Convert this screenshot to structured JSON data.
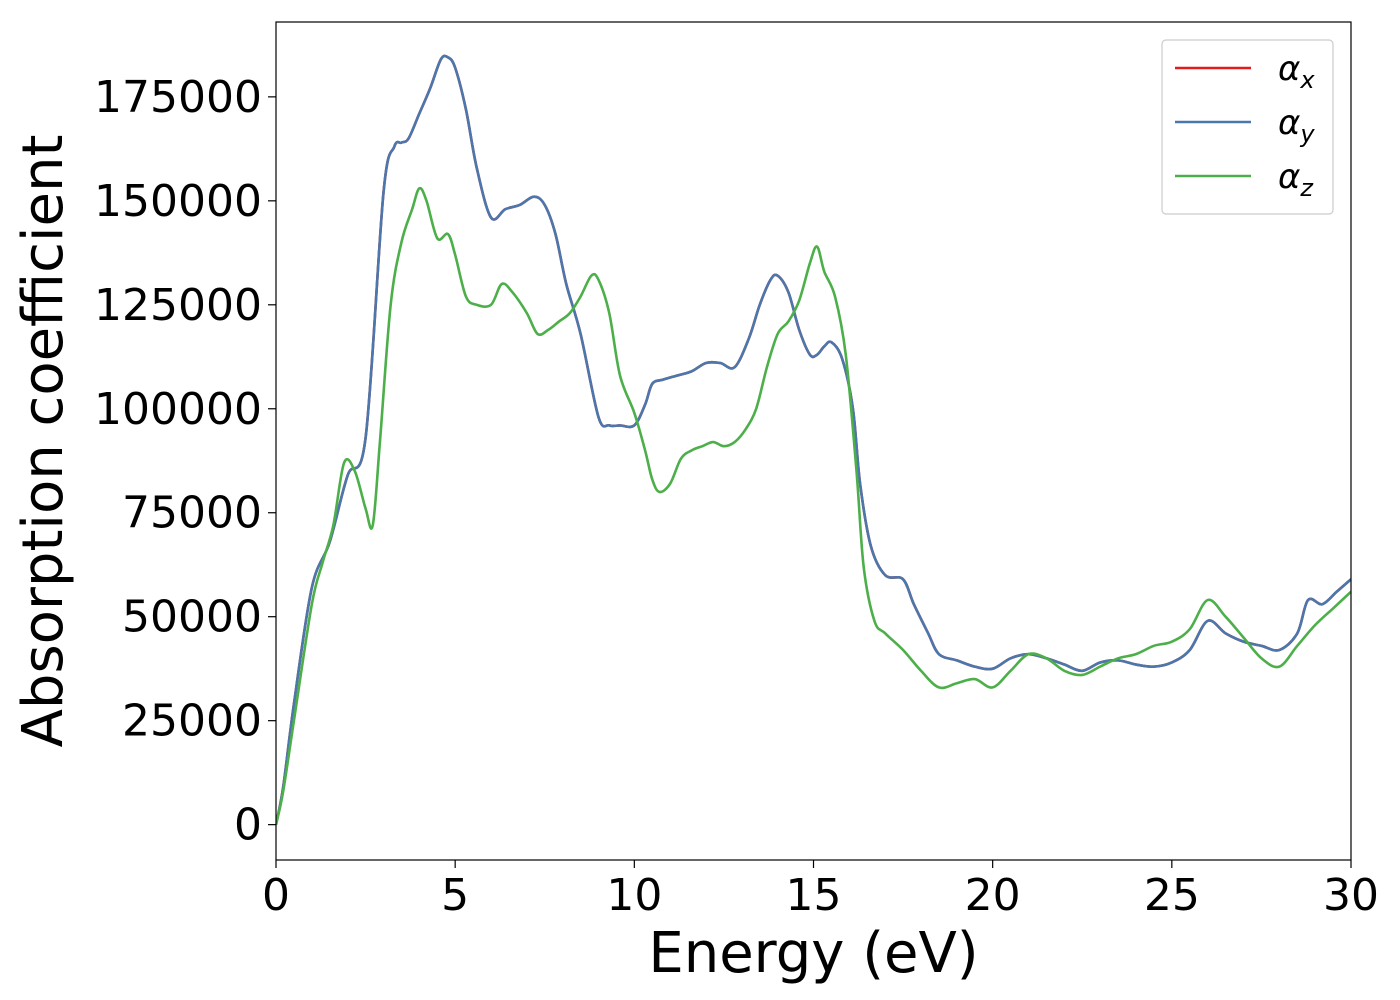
{
  "chart_data": {
    "type": "line",
    "xlabel": "Energy (eV)",
    "ylabel": "Absorption coefficient",
    "xlim": [
      0,
      30
    ],
    "ylim": [
      -8500,
      193000
    ],
    "x_ticks": [
      0,
      5,
      10,
      15,
      20,
      25,
      30
    ],
    "y_ticks": [
      0,
      25000,
      50000,
      75000,
      100000,
      125000,
      150000,
      175000
    ],
    "grid": false,
    "legend_position": "top-right",
    "series": [
      {
        "name": "α_x",
        "label_base": "α",
        "label_sub": "x",
        "color": "#e41a1c",
        "x": [
          0,
          0.2,
          0.5,
          1.0,
          1.5,
          2.0,
          2.5,
          3.0,
          3.3,
          3.5,
          3.7,
          4.0,
          4.3,
          4.6,
          4.8,
          5.0,
          5.3,
          5.6,
          6.0,
          6.4,
          6.8,
          7.2,
          7.5,
          7.8,
          8.1,
          8.5,
          9.0,
          9.3,
          9.6,
          10.0,
          10.3,
          10.5,
          10.8,
          11.2,
          11.6,
          12.0,
          12.4,
          12.8,
          13.2,
          13.5,
          13.8,
          14.0,
          14.3,
          14.6,
          14.9,
          15.1,
          15.3,
          15.5,
          15.8,
          16.1,
          16.3,
          16.6,
          17.0,
          17.5,
          17.8,
          18.2,
          18.5,
          19.0,
          19.5,
          20.0,
          20.5,
          21.0,
          21.5,
          22.0,
          22.5,
          23.0,
          23.5,
          24.0,
          24.5,
          25.0,
          25.5,
          26.0,
          26.5,
          27.0,
          27.5,
          28.0,
          28.5,
          28.8,
          29.2,
          29.6,
          30.0
        ],
        "values": [
          0,
          9000,
          29000,
          57000,
          68000,
          84000,
          93000,
          152000,
          163000,
          164000,
          165000,
          171000,
          177000,
          184000,
          184500,
          182000,
          172000,
          158000,
          146000,
          148000,
          149000,
          151000,
          149000,
          142000,
          130000,
          118000,
          98000,
          96000,
          96000,
          96000,
          101000,
          106000,
          107000,
          108000,
          109000,
          111000,
          111000,
          110000,
          117000,
          125000,
          131000,
          132000,
          128000,
          119000,
          113000,
          113000,
          115000,
          116000,
          112000,
          100000,
          82000,
          67000,
          60000,
          59000,
          53000,
          46000,
          41000,
          39500,
          38000,
          37500,
          40000,
          41000,
          40000,
          38500,
          37000,
          39000,
          39500,
          38500,
          38000,
          39000,
          42000,
          49000,
          46000,
          44000,
          43000,
          42000,
          46000,
          54000,
          53000,
          56000,
          59000
        ]
      },
      {
        "name": "α_y",
        "label_base": "α",
        "label_sub": "y",
        "color": "#4a77ac",
        "x": [
          0,
          0.2,
          0.5,
          1.0,
          1.5,
          2.0,
          2.5,
          3.0,
          3.3,
          3.5,
          3.7,
          4.0,
          4.3,
          4.6,
          4.8,
          5.0,
          5.3,
          5.6,
          6.0,
          6.4,
          6.8,
          7.2,
          7.5,
          7.8,
          8.1,
          8.5,
          9.0,
          9.3,
          9.6,
          10.0,
          10.3,
          10.5,
          10.8,
          11.2,
          11.6,
          12.0,
          12.4,
          12.8,
          13.2,
          13.5,
          13.8,
          14.0,
          14.3,
          14.6,
          14.9,
          15.1,
          15.3,
          15.5,
          15.8,
          16.1,
          16.3,
          16.6,
          17.0,
          17.5,
          17.8,
          18.2,
          18.5,
          19.0,
          19.5,
          20.0,
          20.5,
          21.0,
          21.5,
          22.0,
          22.5,
          23.0,
          23.5,
          24.0,
          24.5,
          25.0,
          25.5,
          26.0,
          26.5,
          27.0,
          27.5,
          28.0,
          28.5,
          28.8,
          29.2,
          29.6,
          30.0
        ],
        "values": [
          0,
          9000,
          29000,
          57000,
          68000,
          84000,
          93000,
          152000,
          163000,
          164000,
          165000,
          171000,
          177000,
          184000,
          184500,
          182000,
          172000,
          158000,
          146000,
          148000,
          149000,
          151000,
          149000,
          142000,
          130000,
          118000,
          98000,
          96000,
          96000,
          96000,
          101000,
          106000,
          107000,
          108000,
          109000,
          111000,
          111000,
          110000,
          117000,
          125000,
          131000,
          132000,
          128000,
          119000,
          113000,
          113000,
          115000,
          116000,
          112000,
          100000,
          82000,
          67000,
          60000,
          59000,
          53000,
          46000,
          41000,
          39500,
          38000,
          37500,
          40000,
          41000,
          40000,
          38500,
          37000,
          39000,
          39500,
          38500,
          38000,
          39000,
          42000,
          49000,
          46000,
          44000,
          43000,
          42000,
          46000,
          54000,
          53000,
          56000,
          59000
        ]
      },
      {
        "name": "α_z",
        "label_base": "α",
        "label_sub": "z",
        "color": "#4daf4a",
        "x": [
          0,
          0.2,
          0.5,
          1.0,
          1.3,
          1.6,
          1.9,
          2.2,
          2.5,
          2.7,
          2.9,
          3.2,
          3.5,
          3.8,
          4.0,
          4.2,
          4.5,
          4.8,
          5.0,
          5.3,
          5.6,
          6.0,
          6.3,
          6.6,
          7.0,
          7.3,
          7.6,
          7.9,
          8.2,
          8.5,
          8.8,
          9.0,
          9.3,
          9.6,
          10.0,
          10.3,
          10.5,
          10.7,
          11.0,
          11.3,
          11.6,
          11.9,
          12.2,
          12.5,
          12.8,
          13.1,
          13.4,
          13.7,
          14.0,
          14.3,
          14.6,
          14.9,
          15.1,
          15.3,
          15.6,
          15.9,
          16.2,
          16.4,
          16.7,
          17.0,
          17.5,
          18.0,
          18.5,
          19.0,
          19.5,
          20.0,
          20.5,
          21.0,
          21.5,
          22.0,
          22.5,
          23.0,
          23.5,
          24.0,
          24.5,
          25.0,
          25.5,
          26.0,
          26.5,
          27.0,
          27.5,
          28.0,
          28.5,
          29.0,
          29.5,
          30.0
        ],
        "values": [
          0,
          8000,
          25000,
          53000,
          63000,
          72000,
          87000,
          85000,
          76000,
          72000,
          92000,
          125000,
          140000,
          148000,
          153000,
          150000,
          141000,
          142000,
          137000,
          127000,
          125000,
          125000,
          130000,
          128000,
          123000,
          118000,
          119000,
          121000,
          123000,
          127000,
          132000,
          131000,
          123000,
          108000,
          99000,
          90000,
          83000,
          80000,
          82000,
          88000,
          90000,
          91000,
          92000,
          91000,
          92000,
          95000,
          100000,
          110000,
          118000,
          121000,
          126000,
          135000,
          139000,
          133000,
          127000,
          113000,
          85000,
          62000,
          49000,
          46000,
          42000,
          37000,
          33000,
          34000,
          35000,
          33000,
          37000,
          41000,
          40000,
          37000,
          36000,
          38000,
          40000,
          41000,
          43000,
          44000,
          47000,
          54000,
          50000,
          45000,
          40000,
          38000,
          43000,
          48000,
          52000,
          56000
        ]
      }
    ]
  }
}
